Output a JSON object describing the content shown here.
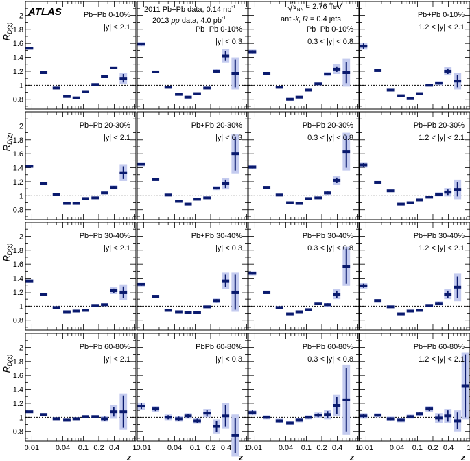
{
  "figure": {
    "atlas_label": "ATLAS",
    "data_label_1": "2011 Pb+Pb data, 0.14 nb",
    "data_label_1_sup": "-1",
    "data_label_2_pre": "2013 ",
    "data_label_2_pp": "pp",
    "data_label_2_post": " data, 4.0 pb",
    "data_label_2_sup": "-1",
    "energy_prefix": "s",
    "energy_sub": "NN",
    "energy_value": " = 2.76 TeV",
    "jets_prefix": "anti-",
    "jets_k": "k",
    "jets_t": "t",
    "jets_r": " R",
    "jets_value": " = 0.4 jets",
    "ylabel_main": "R",
    "ylabel_sub": "D(z)",
    "xlabel": "z",
    "y_ticklabels": [
      "0.8",
      "1",
      "1.2",
      "1.4",
      "1.6",
      "1.8",
      "2"
    ],
    "x_ticklabels": [
      "0.01",
      "0.04",
      "0.1",
      "0.2",
      "0.4",
      "1"
    ]
  },
  "colors": {
    "marker": "#0a1a6e",
    "band": "#c4cbef",
    "axis": "#000000"
  },
  "chart_data": {
    "type": "scatter",
    "title": "",
    "xlabel": "z",
    "ylabel": "R_D(z)",
    "xscale": "log",
    "xlim": [
      0.0075,
      1.05
    ],
    "ylim": [
      0.66,
      2.2
    ],
    "reference_line": 1.0,
    "x": [
      0.009,
      0.017,
      0.03,
      0.048,
      0.073,
      0.11,
      0.17,
      0.26,
      0.39,
      0.6,
      0.85
    ],
    "y_ticks": [
      0.8,
      1.0,
      1.2,
      1.4,
      1.6,
      1.8,
      2.0
    ],
    "x_ticks": [
      0.01,
      0.04,
      0.1,
      0.2,
      0.4,
      1.0
    ],
    "panels": [
      {
        "centrality": "Pb+Pb 0-10%",
        "rapidity": "|y| < 2.1",
        "y": [
          1.53,
          1.18,
          0.96,
          0.84,
          0.82,
          0.91,
          1.01,
          1.13,
          1.25,
          1.1,
          null
        ],
        "err": [
          0.01,
          0.01,
          0.01,
          0.01,
          0.01,
          0.01,
          0.01,
          0.01,
          0.01,
          0.06,
          0
        ],
        "sys": [
          0.02,
          0.02,
          0.02,
          0.02,
          0.02,
          0.02,
          0.02,
          0.02,
          0.02,
          0.08,
          0
        ]
      },
      {
        "centrality": "Pb+Pb 0-10%",
        "rapidity": "|y| < 0.3",
        "y": [
          1.59,
          1.19,
          0.97,
          0.87,
          0.83,
          0.88,
          0.96,
          1.2,
          1.42,
          1.17,
          null
        ],
        "err": [
          0.02,
          0.01,
          0.01,
          0.01,
          0.01,
          0.01,
          0.01,
          0.02,
          0.07,
          0.2,
          0
        ],
        "sys": [
          0.03,
          0.02,
          0.02,
          0.02,
          0.02,
          0.02,
          0.02,
          0.03,
          0.1,
          0.23,
          0
        ]
      },
      {
        "centrality": "Pb+Pb 0-10%",
        "rapidity": "0.3 < |y| < 0.8",
        "y": [
          1.48,
          1.17,
          0.97,
          0.8,
          0.83,
          0.93,
          1.02,
          1.16,
          1.23,
          1.18,
          null
        ],
        "err": [
          0.02,
          0.01,
          0.01,
          0.01,
          0.01,
          0.01,
          0.01,
          0.02,
          0.04,
          0.15,
          0
        ],
        "sys": [
          0.03,
          0.02,
          0.02,
          0.02,
          0.02,
          0.02,
          0.02,
          0.03,
          0.07,
          0.2,
          0
        ]
      },
      {
        "centrality": "Pb+Pb 0-10%",
        "rapidity": "1.2 < |y| < 2.1",
        "y": [
          1.56,
          1.21,
          0.93,
          0.85,
          0.81,
          0.88,
          1.0,
          1.03,
          1.2,
          1.06,
          null
        ],
        "err": [
          0.04,
          0.01,
          0.01,
          0.01,
          0.01,
          0.01,
          0.01,
          0.02,
          0.04,
          0.09,
          0
        ],
        "sys": [
          0.05,
          0.02,
          0.02,
          0.02,
          0.02,
          0.02,
          0.02,
          0.03,
          0.06,
          0.12,
          0
        ]
      },
      {
        "centrality": "Pb+Pb 20-30%",
        "rapidity": "|y| < 2.1",
        "y": [
          1.42,
          1.17,
          1.02,
          0.89,
          0.89,
          0.96,
          0.97,
          1.04,
          1.12,
          1.33,
          null
        ],
        "err": [
          0.01,
          0.01,
          0.01,
          0.01,
          0.01,
          0.01,
          0.01,
          0.01,
          0.02,
          0.09,
          0
        ],
        "sys": [
          0.02,
          0.02,
          0.02,
          0.02,
          0.02,
          0.02,
          0.02,
          0.02,
          0.03,
          0.12,
          0
        ]
      },
      {
        "centrality": "Pb+Pb 20-30%",
        "rapidity": "|y| < 0.3",
        "y": [
          1.45,
          1.23,
          1.01,
          0.92,
          0.88,
          0.95,
          0.97,
          1.11,
          1.17,
          1.6,
          null
        ],
        "err": [
          0.02,
          0.01,
          0.01,
          0.01,
          0.01,
          0.01,
          0.01,
          0.02,
          0.06,
          0.24,
          0
        ],
        "sys": [
          0.03,
          0.02,
          0.02,
          0.02,
          0.02,
          0.02,
          0.02,
          0.03,
          0.08,
          0.28,
          0
        ]
      },
      {
        "centrality": "Pb+Pb 20-30%",
        "rapidity": "0.3 < |y| < 0.8",
        "y": [
          1.41,
          1.12,
          1.01,
          0.9,
          0.89,
          0.96,
          0.97,
          1.04,
          1.22,
          1.63,
          null
        ],
        "err": [
          0.02,
          0.01,
          0.01,
          0.01,
          0.01,
          0.01,
          0.01,
          0.02,
          0.04,
          0.23,
          0
        ],
        "sys": [
          0.03,
          0.02,
          0.02,
          0.02,
          0.02,
          0.02,
          0.02,
          0.03,
          0.06,
          0.27,
          0
        ]
      },
      {
        "centrality": "Pb+Pb 20-30%",
        "rapidity": "1.2 < |y| < 2.1",
        "y": [
          1.44,
          1.19,
          1.07,
          0.88,
          0.9,
          0.94,
          0.98,
          1.02,
          1.05,
          1.09,
          null
        ],
        "err": [
          0.03,
          0.01,
          0.01,
          0.01,
          0.01,
          0.01,
          0.01,
          0.02,
          0.04,
          0.1,
          0
        ],
        "sys": [
          0.04,
          0.02,
          0.02,
          0.02,
          0.02,
          0.02,
          0.02,
          0.03,
          0.06,
          0.14,
          0
        ]
      },
      {
        "centrality": "Pb+Pb 30-40%",
        "rapidity": "|y| < 2.1",
        "y": [
          1.36,
          1.17,
          0.98,
          0.92,
          0.93,
          0.94,
          1.01,
          1.02,
          1.22,
          1.2,
          null
        ],
        "err": [
          0.01,
          0.01,
          0.01,
          0.01,
          0.01,
          0.01,
          0.01,
          0.01,
          0.03,
          0.08,
          0
        ],
        "sys": [
          0.02,
          0.02,
          0.02,
          0.02,
          0.02,
          0.02,
          0.02,
          0.02,
          0.05,
          0.11,
          0
        ]
      },
      {
        "centrality": "Pb+Pb 30-40%",
        "rapidity": "|y| < 0.3",
        "y": [
          1.31,
          1.14,
          0.94,
          0.92,
          0.91,
          0.91,
          0.99,
          1.08,
          1.36,
          1.2,
          null
        ],
        "err": [
          0.02,
          0.01,
          0.01,
          0.01,
          0.01,
          0.01,
          0.01,
          0.02,
          0.09,
          0.25,
          0
        ],
        "sys": [
          0.03,
          0.02,
          0.02,
          0.02,
          0.02,
          0.02,
          0.02,
          0.03,
          0.12,
          0.28,
          0
        ]
      },
      {
        "centrality": "Pb+Pb 30-40%",
        "rapidity": "0.3 < |y| < 0.8",
        "y": [
          1.47,
          1.2,
          0.98,
          0.89,
          0.92,
          0.95,
          1.04,
          1.02,
          1.17,
          1.57,
          null
        ],
        "err": [
          0.02,
          0.01,
          0.01,
          0.01,
          0.01,
          0.01,
          0.01,
          0.02,
          0.05,
          0.25,
          0
        ],
        "sys": [
          0.03,
          0.02,
          0.02,
          0.02,
          0.02,
          0.02,
          0.02,
          0.03,
          0.07,
          0.28,
          0
        ]
      },
      {
        "centrality": "Pb+Pb 30-40%",
        "rapidity": "1.2 < |y| < 2.1",
        "y": [
          1.29,
          1.08,
          0.99,
          0.89,
          0.93,
          0.94,
          1.01,
          1.04,
          1.17,
          1.27,
          null
        ],
        "err": [
          0.03,
          0.01,
          0.01,
          0.01,
          0.01,
          0.01,
          0.01,
          0.02,
          0.05,
          0.15,
          0
        ],
        "sys": [
          0.04,
          0.02,
          0.02,
          0.02,
          0.02,
          0.02,
          0.02,
          0.03,
          0.07,
          0.2,
          0
        ]
      },
      {
        "centrality": "Pb+Pb 60-80%",
        "rapidity": "|y| < 2.1",
        "y": [
          1.08,
          1.04,
          0.98,
          0.96,
          0.98,
          1.01,
          1.01,
          0.98,
          1.08,
          1.08,
          null
        ],
        "err": [
          0.01,
          0.01,
          0.01,
          0.01,
          0.01,
          0.01,
          0.01,
          0.03,
          0.07,
          0.23,
          0
        ],
        "sys": [
          0.02,
          0.02,
          0.02,
          0.02,
          0.02,
          0.02,
          0.02,
          0.04,
          0.1,
          0.26,
          0
        ]
      },
      {
        "centrality": "PbPb 60-80%",
        "rapidity": "|y| < 0.3",
        "y": [
          1.16,
          1.12,
          1.0,
          0.98,
          1.02,
          0.95,
          1.06,
          0.87,
          1.02,
          0.74,
          null
        ],
        "err": [
          0.04,
          0.03,
          0.03,
          0.03,
          0.03,
          0.03,
          0.05,
          0.08,
          0.15,
          0.25,
          0
        ],
        "sys": [
          0.05,
          0.04,
          0.04,
          0.04,
          0.04,
          0.04,
          0.06,
          0.1,
          0.18,
          0.3,
          0
        ]
      },
      {
        "centrality": "Pb+Pb 60-80%",
        "rapidity": "0.3 < |y| < 0.8",
        "y": [
          1.07,
          1.0,
          0.95,
          0.92,
          0.96,
          1.0,
          1.03,
          1.04,
          1.17,
          1.25,
          null
        ],
        "err": [
          0.03,
          0.02,
          0.02,
          0.02,
          0.02,
          0.02,
          0.03,
          0.05,
          0.12,
          0.45,
          0
        ],
        "sys": [
          0.04,
          0.03,
          0.03,
          0.03,
          0.03,
          0.03,
          0.04,
          0.07,
          0.15,
          0.5,
          0
        ]
      },
      {
        "centrality": "Pb+Pb 60-80%",
        "rapidity": "1.2 < |y| < 2.1",
        "y": [
          1.02,
          1.03,
          0.98,
          0.96,
          1.01,
          1.05,
          1.12,
          0.99,
          1.02,
          0.95,
          1.45
        ],
        "err": [
          0.03,
          0.02,
          0.02,
          0.02,
          0.02,
          0.02,
          0.03,
          0.05,
          0.08,
          0.12,
          0.45
        ],
        "sys": [
          0.04,
          0.03,
          0.03,
          0.03,
          0.03,
          0.03,
          0.04,
          0.07,
          0.1,
          0.15,
          0.48
        ]
      }
    ]
  }
}
